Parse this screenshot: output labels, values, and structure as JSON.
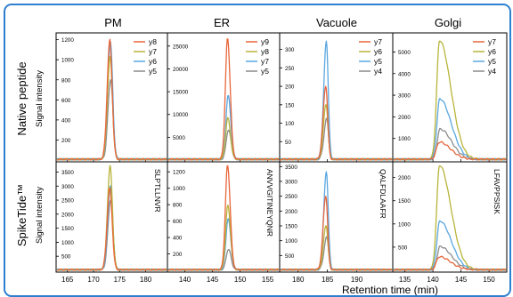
{
  "colors": {
    "frame": "#2e7fd0",
    "axis": "#000000"
  },
  "figure": {
    "row_labels": [
      "Native peptide",
      "SpikeTide™"
    ],
    "y_axis_label": "Signal intensity",
    "x_axis_label": "Retention time (min)"
  },
  "chart_data": [
    {
      "type": "line",
      "column_title": "PM",
      "row": "Native peptide",
      "legend": {
        "placement": "top-right",
        "entries": [
          "y8",
          "y7",
          "y6",
          "y5"
        ]
      },
      "xlim": [
        163,
        184
      ],
      "ylim": [
        0,
        1250
      ],
      "xticks": [
        "165",
        "170",
        "175",
        "180"
      ],
      "yticks": [
        200,
        400,
        600,
        800,
        1000,
        1200
      ],
      "peak": {
        "center": 173.2,
        "width": 0.5,
        "tail": 0.9
      },
      "series": [
        {
          "name": "y8",
          "color": "#e8663a",
          "apex": 1190
        },
        {
          "name": "y7",
          "color": "#b9b43a",
          "apex": 1020
        },
        {
          "name": "y6",
          "color": "#5aa7e0",
          "apex": 1175
        },
        {
          "name": "y5",
          "color": "#8c8c8c",
          "apex": 800
        }
      ]
    },
    {
      "type": "line",
      "column_title": "ER",
      "row": "Native peptide",
      "legend": {
        "placement": "top-right",
        "entries": [
          "y9",
          "y8",
          "y7",
          "y5"
        ]
      },
      "xlim": [
        137,
        157
      ],
      "ylim": [
        0,
        27500
      ],
      "xticks": [
        "140",
        "145",
        "150",
        "155"
      ],
      "yticks": [
        5000,
        10000,
        15000,
        20000,
        25000
      ],
      "peak": {
        "center": 147.8,
        "width": 0.4,
        "tail": 1.2
      },
      "series": [
        {
          "name": "y9",
          "color": "#e8663a",
          "apex": 26500
        },
        {
          "name": "y8",
          "color": "#b9b43a",
          "apex": 9000
        },
        {
          "name": "y7",
          "color": "#5aa7e0",
          "apex": 14000
        },
        {
          "name": "y5",
          "color": "#8c8c8c",
          "apex": 6500
        }
      ]
    },
    {
      "type": "line",
      "column_title": "Vacuole",
      "row": "Native peptide",
      "legend": {
        "placement": "top-right",
        "entries": [
          "y7",
          "y6",
          "y5",
          "y4"
        ]
      },
      "xlim": [
        177,
        196
      ],
      "ylim": [
        0,
        340
      ],
      "xticks": [
        "180",
        "185",
        "190"
      ],
      "yticks": [
        50,
        100,
        150,
        200,
        250,
        300
      ],
      "peak": {
        "center": 184.8,
        "width": 0.45,
        "tail": 0.7
      },
      "series": [
        {
          "name": "y7",
          "color": "#e8663a",
          "apex": 200
        },
        {
          "name": "y6",
          "color": "#b9b43a",
          "apex": 150
        },
        {
          "name": "y5",
          "color": "#5aa7e0",
          "apex": 320
        },
        {
          "name": "y4",
          "color": "#8c8c8c",
          "apex": 110
        }
      ]
    },
    {
      "type": "line",
      "column_title": "Golgi",
      "row": "Native peptide",
      "legend": {
        "placement": "top-right",
        "entries": [
          "y7",
          "y6",
          "y5",
          "y4"
        ]
      },
      "xlim": [
        133,
        153
      ],
      "ylim": [
        0,
        5800
      ],
      "xticks": [
        "135",
        "140",
        "145",
        "150"
      ],
      "yticks": [
        1000,
        2000,
        3000,
        4000,
        5000
      ],
      "peak": {
        "center": 141.2,
        "width": 0.5,
        "tail": 4.0
      },
      "series": [
        {
          "name": "y7",
          "color": "#e8663a",
          "apex": 800
        },
        {
          "name": "y6",
          "color": "#b9b43a",
          "apex": 5500
        },
        {
          "name": "y5",
          "color": "#5aa7e0",
          "apex": 2800
        },
        {
          "name": "y4",
          "color": "#8c8c8c",
          "apex": 1400
        }
      ]
    },
    {
      "type": "line",
      "column_title": "PM",
      "row": "SpikeTide™",
      "annotation": "SLPTLLNVR",
      "xlim": [
        163,
        184
      ],
      "ylim": [
        0,
        3800
      ],
      "xticks": [
        "165",
        "170",
        "175",
        "180"
      ],
      "yticks": [
        500,
        1000,
        1500,
        2000,
        2500,
        3000,
        3500
      ],
      "peak": {
        "center": 173.2,
        "width": 0.5,
        "tail": 0.9
      },
      "series": [
        {
          "name": "y8",
          "color": "#e8663a",
          "apex": 2900
        },
        {
          "name": "y7",
          "color": "#b9b43a",
          "apex": 3700
        },
        {
          "name": "y6",
          "color": "#5aa7e0",
          "apex": 3000
        },
        {
          "name": "y5",
          "color": "#8c8c8c",
          "apex": 2500
        }
      ]
    },
    {
      "type": "line",
      "column_title": "ER",
      "row": "SpikeTide™",
      "annotation": "ANVVGITINEYQNR",
      "xlim": [
        137,
        157
      ],
      "ylim": [
        0,
        1300
      ],
      "xticks": [
        "140",
        "145",
        "150",
        "155"
      ],
      "yticks": [
        200,
        400,
        600,
        800,
        1000,
        1200
      ],
      "peak": {
        "center": 147.8,
        "width": 0.4,
        "tail": 1.2
      },
      "series": [
        {
          "name": "y9",
          "color": "#e8663a",
          "apex": 1270
        },
        {
          "name": "y8",
          "color": "#b9b43a",
          "apex": 780
        },
        {
          "name": "y7",
          "color": "#5aa7e0",
          "apex": 620
        },
        {
          "name": "y5",
          "color": "#8c8c8c",
          "apex": 250
        }
      ]
    },
    {
      "type": "line",
      "column_title": "Vacuole",
      "row": "SpikeTide™",
      "annotation": "QALFDLAAFR",
      "xlim": [
        177,
        196
      ],
      "ylim": [
        0,
        3600
      ],
      "xticks": [
        "180",
        "185",
        "190"
      ],
      "yticks": [
        500,
        1000,
        1500,
        2000,
        2500,
        3000,
        3500
      ],
      "peak": {
        "center": 184.8,
        "width": 0.45,
        "tail": 0.7
      },
      "series": [
        {
          "name": "y7",
          "color": "#e8663a",
          "apex": 2500
        },
        {
          "name": "y6",
          "color": "#b9b43a",
          "apex": 1500
        },
        {
          "name": "y5",
          "color": "#5aa7e0",
          "apex": 3300
        },
        {
          "name": "y4",
          "color": "#8c8c8c",
          "apex": 1100
        }
      ]
    },
    {
      "type": "line",
      "column_title": "Golgi",
      "row": "SpikeTide™",
      "annotation": "LFAVPPSISK",
      "xlim": [
        133,
        153
      ],
      "ylim": [
        0,
        2300
      ],
      "xticks": [
        "135",
        "140",
        "145",
        "150"
      ],
      "yticks": [
        500,
        1000,
        1500,
        2000
      ],
      "peak": {
        "center": 141.2,
        "width": 0.5,
        "tail": 4.0
      },
      "series": [
        {
          "name": "y7",
          "color": "#e8663a",
          "apex": 280
        },
        {
          "name": "y6",
          "color": "#b9b43a",
          "apex": 2250
        },
        {
          "name": "y5",
          "color": "#5aa7e0",
          "apex": 1050
        },
        {
          "name": "y4",
          "color": "#8c8c8c",
          "apex": 500
        }
      ]
    }
  ]
}
